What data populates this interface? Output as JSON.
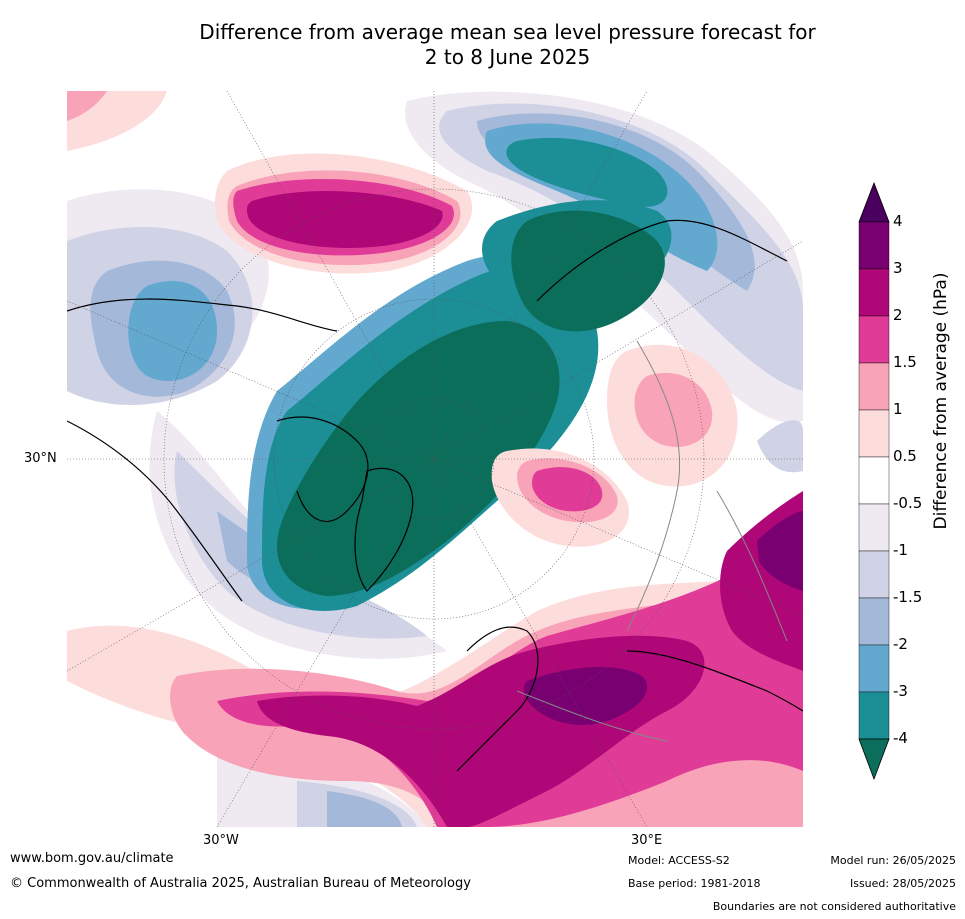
{
  "title_line1": "Difference from average mean sea level pressure forecast for",
  "title_line2": "2 to 8 June 2025",
  "map": {
    "projection": "north polar stereographic",
    "graticule": {
      "lat_label": "30°N",
      "lon_left": "30°W",
      "lon_right": "30°E"
    },
    "fill_colors": {
      "minus4": "#0a6e5a",
      "minus3": "#1c8e96",
      "minus2": "#62a8cf",
      "minus1_5": "#a4b9da",
      "minus1": "#d0d2e5",
      "minus0_5": "#efeaf2",
      "zero": "#ffffff",
      "plus0_5": "#fddcdc",
      "plus1": "#f9a3b8",
      "plus1_5": "#e03b96",
      "plus2": "#b00778",
      "plus3": "#780071",
      "plus4": "#4a005e"
    }
  },
  "colorbar": {
    "label": "Difference from average (hPa)",
    "ticks": [
      "4",
      "3",
      "2",
      "1.5",
      "1",
      "0.5",
      "-0.5",
      "-1",
      "-1.5",
      "-2",
      "-3",
      "-4"
    ],
    "colors": [
      "#4a005e",
      "#780071",
      "#b00778",
      "#e03b96",
      "#f9a3b8",
      "#fddcdc",
      "#ffffff",
      "#efeaf2",
      "#d0d2e5",
      "#a4b9da",
      "#62a8cf",
      "#1c8e96",
      "#0a6e5a"
    ]
  },
  "footer": {
    "url": "www.bom.gov.au/climate",
    "copyright": "© Commonwealth of Australia 2025, Australian Bureau of Meteorology",
    "model": "Model: ACCESS-S2",
    "base_period": "Base period: 1981-2018",
    "model_run": "Model run: 26/05/2025",
    "issued": "Issued: 28/05/2025",
    "disclaimer": "Boundaries are not considered authoritative"
  }
}
